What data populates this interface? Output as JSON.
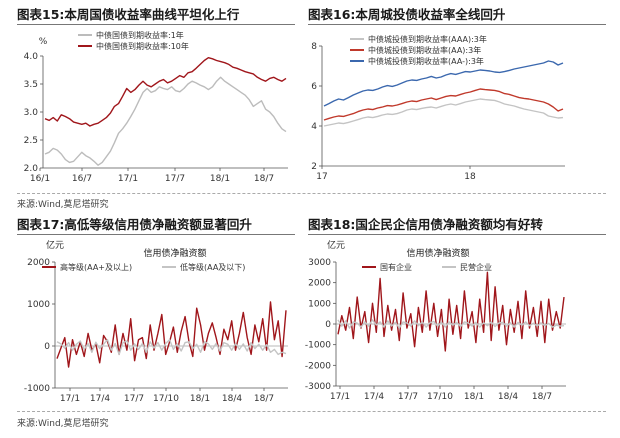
{
  "panels": {
    "p1": {
      "title": "图表15:本周国债收益率曲线平坦化上行"
    },
    "p2": {
      "title": "图表16:本周城投债收益率全线回升"
    },
    "p3": {
      "title": "图表17:高低等级信用债净融资额显著回升"
    },
    "p4": {
      "title": "图表18:国企民企信用债净融资额均有好转"
    }
  },
  "sources": {
    "top": "来源:Wind,莫尼塔研究",
    "bottom": "来源:Wind,莫尼塔研究"
  },
  "colors": {
    "dark_red": "#a0161b",
    "gray": "#bcbcbc",
    "blue": "#3b68ae",
    "red": "#c0392b",
    "light_gray": "#c4c4c4"
  },
  "chart_data": [
    {
      "id": "p1",
      "type": "line",
      "unit_label": "%",
      "ylim": [
        2.0,
        4.0
      ],
      "yticks": [
        "2.0",
        "2.5",
        "3.0",
        "3.5",
        "4.0"
      ],
      "xticks": [
        "16/1",
        "16/7",
        "17/1",
        "17/7",
        "18/1",
        "18/7"
      ],
      "legend_position": "top-left",
      "series": [
        {
          "name": "中债国债到期收益率:1年",
          "color": "#bcbcbc",
          "values": [
            2.25,
            2.28,
            2.35,
            2.32,
            2.25,
            2.15,
            2.1,
            2.12,
            2.2,
            2.28,
            2.22,
            2.18,
            2.12,
            2.05,
            2.1,
            2.2,
            2.3,
            2.45,
            2.62,
            2.7,
            2.8,
            2.92,
            3.05,
            3.2,
            3.35,
            3.42,
            3.35,
            3.38,
            3.45,
            3.42,
            3.4,
            3.45,
            3.38,
            3.36,
            3.42,
            3.5,
            3.55,
            3.52,
            3.48,
            3.45,
            3.4,
            3.45,
            3.55,
            3.62,
            3.55,
            3.5,
            3.45,
            3.4,
            3.35,
            3.3,
            3.22,
            3.1,
            3.15,
            3.2,
            3.05,
            3.0,
            2.92,
            2.8,
            2.7,
            2.65
          ]
        },
        {
          "name": "中债国债到期收益率:10年",
          "color": "#a0161b",
          "values": [
            2.88,
            2.85,
            2.9,
            2.84,
            2.95,
            2.92,
            2.88,
            2.82,
            2.8,
            2.78,
            2.8,
            2.75,
            2.78,
            2.8,
            2.85,
            2.9,
            2.98,
            3.1,
            3.15,
            3.28,
            3.42,
            3.35,
            3.4,
            3.48,
            3.55,
            3.48,
            3.45,
            3.5,
            3.55,
            3.58,
            3.52,
            3.55,
            3.6,
            3.65,
            3.62,
            3.7,
            3.72,
            3.78,
            3.85,
            3.92,
            3.97,
            3.95,
            3.92,
            3.9,
            3.88,
            3.85,
            3.8,
            3.78,
            3.75,
            3.72,
            3.7,
            3.68,
            3.62,
            3.58,
            3.55,
            3.6,
            3.62,
            3.58,
            3.55,
            3.6
          ]
        }
      ]
    },
    {
      "id": "p2",
      "type": "line",
      "ylim": [
        2,
        8
      ],
      "yticks": [
        "2",
        "4",
        "6",
        "8"
      ],
      "xticks": [
        "17",
        "18"
      ],
      "legend_position": "top-left",
      "series": [
        {
          "name": "中债城投债到期收益率(AAA):3年",
          "color": "#c4c4c4",
          "values": [
            4.0,
            4.05,
            4.1,
            4.15,
            4.12,
            4.18,
            4.25,
            4.32,
            4.4,
            4.45,
            4.42,
            4.48,
            4.55,
            4.6,
            4.58,
            4.62,
            4.7,
            4.8,
            4.85,
            4.82,
            4.88,
            4.92,
            4.95,
            4.9,
            4.98,
            5.05,
            5.1,
            5.05,
            5.12,
            5.2,
            5.25,
            5.3,
            5.35,
            5.32,
            5.3,
            5.28,
            5.2,
            5.1,
            5.05,
            5.0,
            4.92,
            4.85,
            4.8,
            4.75,
            4.7,
            4.65,
            4.5,
            4.45,
            4.4,
            4.42
          ]
        },
        {
          "name": "中债城投债到期收益率(AA):3年",
          "color": "#c0392b",
          "values": [
            4.3,
            4.38,
            4.45,
            4.5,
            4.48,
            4.55,
            4.62,
            4.72,
            4.8,
            4.85,
            4.82,
            4.9,
            4.95,
            5.02,
            5.0,
            5.05,
            5.12,
            5.2,
            5.25,
            5.22,
            5.3,
            5.35,
            5.4,
            5.32,
            5.4,
            5.48,
            5.52,
            5.5,
            5.58,
            5.65,
            5.7,
            5.78,
            5.85,
            5.82,
            5.8,
            5.78,
            5.72,
            5.62,
            5.58,
            5.5,
            5.42,
            5.38,
            5.35,
            5.3,
            5.25,
            5.2,
            5.1,
            4.95,
            4.75,
            4.85
          ]
        },
        {
          "name": "中债城投债到期收益率(AA-):3年",
          "color": "#3b68ae",
          "values": [
            5.0,
            5.12,
            5.25,
            5.35,
            5.3,
            5.42,
            5.55,
            5.65,
            5.75,
            5.8,
            5.78,
            5.85,
            5.95,
            6.02,
            5.98,
            6.05,
            6.15,
            6.25,
            6.3,
            6.28,
            6.35,
            6.4,
            6.48,
            6.4,
            6.45,
            6.55,
            6.62,
            6.58,
            6.65,
            6.72,
            6.7,
            6.75,
            6.8,
            6.78,
            6.75,
            6.7,
            6.68,
            6.72,
            6.78,
            6.85,
            6.9,
            6.95,
            7.0,
            7.05,
            7.1,
            7.15,
            7.25,
            7.2,
            7.05,
            7.15
          ]
        }
      ]
    },
    {
      "id": "p3",
      "type": "line",
      "title": "信用债净融资额",
      "unit_label": "亿元",
      "ylim": [
        -1000,
        2000
      ],
      "yticks": [
        "-1000",
        "0",
        "1000",
        "2000"
      ],
      "xticks": [
        "17/1",
        "17/4",
        "17/7",
        "17/10",
        "18/1",
        "18/4",
        "18/7"
      ],
      "legend_position": "top",
      "series": [
        {
          "name": "高等级(AA+及以上)",
          "color": "#a0161b",
          "values": [
            -300,
            -50,
            200,
            -500,
            150,
            -200,
            100,
            -250,
            300,
            -100,
            50,
            -400,
            250,
            100,
            -150,
            500,
            -200,
            300,
            -100,
            650,
            -350,
            150,
            200,
            -300,
            500,
            -100,
            300,
            750,
            -200,
            100,
            450,
            -150,
            350,
            700,
            100,
            -250,
            900,
            500,
            -100,
            300,
            550,
            200,
            -200,
            400,
            150,
            600,
            -100,
            300,
            800,
            200,
            -200,
            500,
            100,
            650,
            -100,
            1050,
            150,
            600,
            -250,
            850
          ]
        },
        {
          "name": "低等级(AA及以下)",
          "color": "#c4c4c4",
          "values": [
            100,
            50,
            -50,
            80,
            -100,
            40,
            120,
            -80,
            60,
            -150,
            90,
            -60,
            40,
            150,
            -100,
            60,
            -200,
            80,
            120,
            -100,
            50,
            -80,
            60,
            -150,
            100,
            -50,
            80,
            -100,
            60,
            150,
            -80,
            50,
            -120,
            80,
            100,
            -60,
            40,
            -150,
            100,
            50,
            -80,
            60,
            -120,
            80,
            40,
            -100,
            60,
            -80,
            50,
            -120,
            80,
            -60,
            40,
            -100,
            30,
            -150,
            -80,
            -200,
            -150,
            -180
          ]
        }
      ]
    },
    {
      "id": "p4",
      "type": "line",
      "title": "信用债净融资额",
      "unit_label": "亿元",
      "ylim": [
        -3000,
        3000
      ],
      "yticks": [
        "-3000",
        "-2000",
        "-1000",
        "0",
        "1000",
        "2000",
        "3000"
      ],
      "xticks": [
        "17/1",
        "17/4",
        "17/7",
        "17/10",
        "18/1",
        "18/4",
        "18/7"
      ],
      "legend_position": "top",
      "series": [
        {
          "name": "国有企业",
          "color": "#a0161b",
          "values": [
            -500,
            400,
            -300,
            800,
            -700,
            1300,
            -200,
            600,
            -900,
            1000,
            -400,
            2200,
            -600,
            900,
            -300,
            700,
            -800,
            1500,
            -200,
            500,
            -1100,
            800,
            -400,
            1600,
            -300,
            1000,
            -600,
            700,
            -1300,
            1200,
            -500,
            900,
            -700,
            1600,
            -200,
            600,
            -900,
            1200,
            -400,
            2500,
            -800,
            1800,
            -300,
            900,
            -1000,
            700,
            -400,
            1100,
            -700,
            1600,
            -200,
            800,
            -600,
            1100,
            -900,
            1200,
            -300,
            600,
            -200,
            1300
          ]
        },
        {
          "name": "民营企业",
          "color": "#c4c4c4",
          "values": [
            200,
            -100,
            150,
            -200,
            100,
            50,
            -150,
            100,
            -100,
            200,
            -50,
            100,
            -150,
            150,
            -100,
            80,
            -200,
            100,
            50,
            -100,
            150,
            -80,
            100,
            -150,
            60,
            120,
            -100,
            80,
            -150,
            100,
            -60,
            80,
            -120,
            100,
            50,
            -100,
            80,
            -150,
            60,
            -80,
            100,
            -120,
            50,
            80,
            -100,
            60,
            -150,
            80,
            -60,
            100,
            -80,
            40,
            -100,
            60,
            -80,
            30,
            -150,
            -60,
            -100,
            -80
          ]
        }
      ]
    }
  ]
}
